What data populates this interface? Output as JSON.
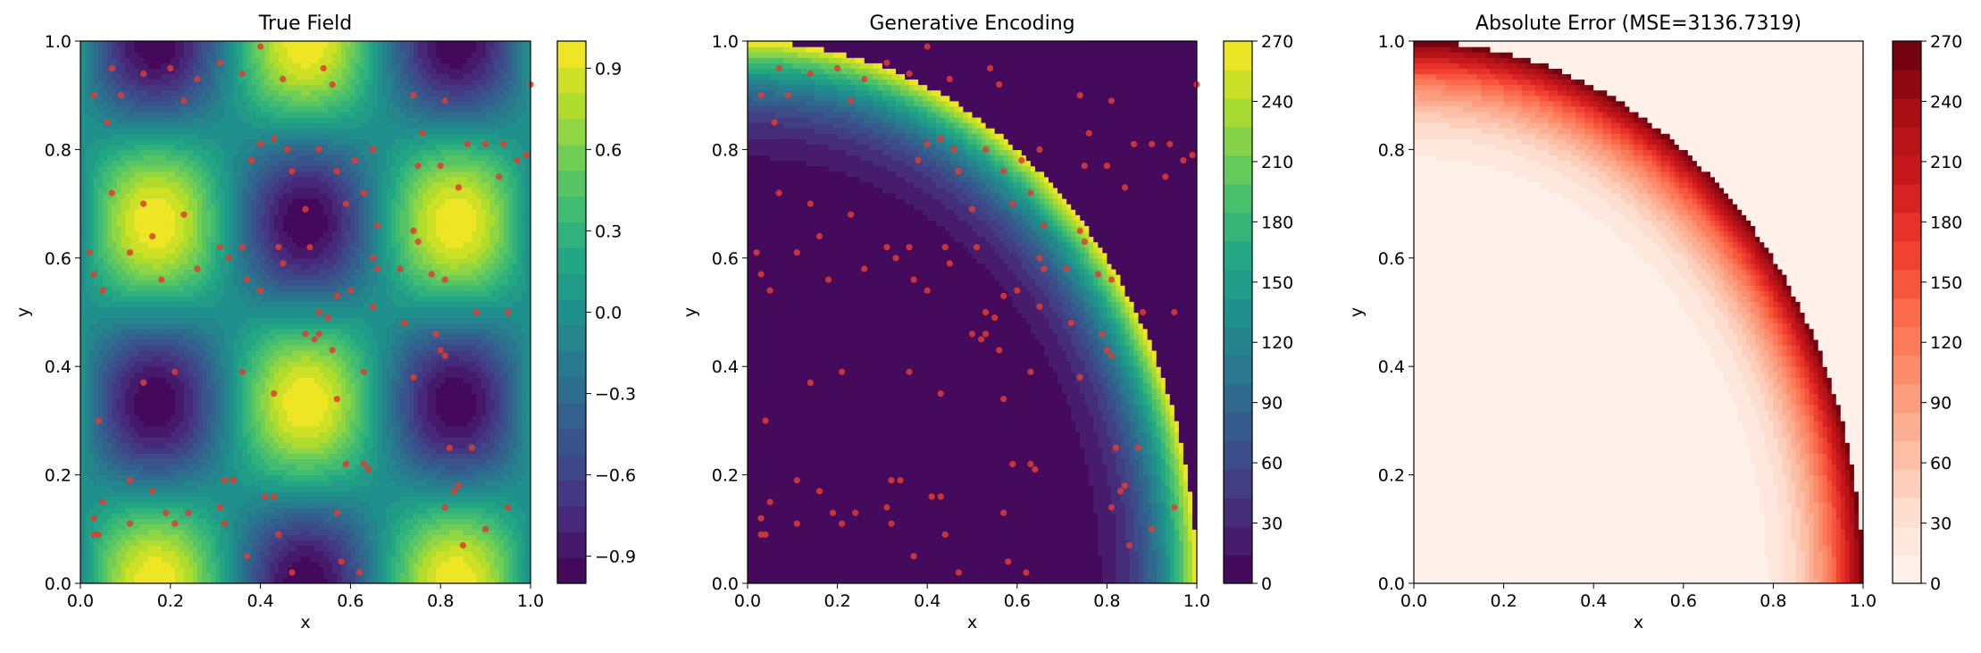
{
  "figure": {
    "panels": [
      {
        "id": "true-field",
        "title": "True Field",
        "xlabel": "x",
        "ylabel": "y"
      },
      {
        "id": "generative-encoding",
        "title": "Generative Encoding",
        "xlabel": "x",
        "ylabel": "y"
      },
      {
        "id": "absolute-error",
        "title": "Absolute Error (MSE=3136.7319)",
        "xlabel": "x",
        "ylabel": "y"
      }
    ]
  },
  "chart_data": [
    {
      "type": "heatmap",
      "title": "True Field",
      "xlabel": "x",
      "ylabel": "y",
      "xlim": [
        0,
        1
      ],
      "ylim": [
        0,
        1
      ],
      "xticks": [
        "0.0",
        "0.2",
        "0.4",
        "0.6",
        "0.8",
        "1.0"
      ],
      "yticks": [
        "0.0",
        "0.2",
        "0.4",
        "0.6",
        "0.8",
        "1.0"
      ],
      "colormap": "viridis",
      "levels": 21,
      "field": "sin(3*pi*x)*cos(3*pi*y)",
      "colorbar": {
        "min": -1,
        "max": 1,
        "ticks": [
          -0.9,
          -0.6,
          -0.3,
          0.0,
          0.3,
          0.6,
          0.9
        ],
        "tick_labels": [
          "−0.9",
          "−0.6",
          "−0.3",
          "0.0",
          "0.3",
          "0.6",
          "0.9"
        ]
      },
      "scatter_color": "#e03c2f"
    },
    {
      "type": "heatmap",
      "title": "Generative Encoding",
      "xlabel": "x",
      "ylabel": "y",
      "xlim": [
        0,
        1
      ],
      "ylim": [
        0,
        1
      ],
      "xticks": [
        "0.0",
        "0.2",
        "0.4",
        "0.6",
        "0.8",
        "1.0"
      ],
      "yticks": [
        "0.0",
        "0.2",
        "0.4",
        "0.6",
        "0.8",
        "1.0"
      ],
      "colormap": "viridis",
      "levels": 19,
      "field": "radial ring: ~0 inside r≈0.72, rising to ~270 at r≈1.0, 0 beyond",
      "colorbar": {
        "min": 0,
        "max": 270,
        "ticks": [
          0,
          30,
          60,
          90,
          120,
          150,
          180,
          210,
          240,
          270
        ],
        "tick_labels": [
          "0",
          "30",
          "60",
          "90",
          "120",
          "150",
          "180",
          "210",
          "240",
          "270"
        ]
      },
      "scatter_color": "#e03c2f"
    },
    {
      "type": "heatmap",
      "title": "Absolute Error (MSE=3136.7319)",
      "xlabel": "x",
      "ylabel": "y",
      "xlim": [
        0,
        1
      ],
      "ylim": [
        0,
        1
      ],
      "xticks": [
        "0.0",
        "0.2",
        "0.4",
        "0.6",
        "0.8",
        "1.0"
      ],
      "yticks": [
        "0.0",
        "0.2",
        "0.4",
        "0.6",
        "0.8",
        "1.0"
      ],
      "colormap": "reds",
      "levels": 19,
      "mse": 3136.7319,
      "colorbar": {
        "min": 0,
        "max": 270,
        "ticks": [
          0,
          30,
          60,
          90,
          120,
          150,
          180,
          210,
          240,
          270
        ],
        "tick_labels": [
          "0",
          "30",
          "60",
          "90",
          "120",
          "150",
          "180",
          "210",
          "240",
          "270"
        ]
      }
    }
  ],
  "sample_points": [
    [
      0.03,
      0.9
    ],
    [
      0.07,
      0.95
    ],
    [
      0.09,
      0.9
    ],
    [
      0.06,
      0.85
    ],
    [
      0.14,
      0.94
    ],
    [
      0.2,
      0.95
    ],
    [
      0.23,
      0.89
    ],
    [
      0.26,
      0.93
    ],
    [
      0.31,
      0.96
    ],
    [
      0.36,
      0.94
    ],
    [
      0.4,
      0.99
    ],
    [
      0.45,
      0.93
    ],
    [
      0.54,
      0.95
    ],
    [
      0.56,
      0.92
    ],
    [
      0.74,
      0.9
    ],
    [
      0.76,
      0.83
    ],
    [
      0.81,
      0.89
    ],
    [
      0.86,
      0.81
    ],
    [
      0.9,
      0.81
    ],
    [
      0.94,
      0.81
    ],
    [
      0.97,
      0.78
    ],
    [
      1.0,
      0.92
    ],
    [
      0.4,
      0.81
    ],
    [
      0.43,
      0.82
    ],
    [
      0.38,
      0.78
    ],
    [
      0.46,
      0.8
    ],
    [
      0.47,
      0.76
    ],
    [
      0.53,
      0.8
    ],
    [
      0.57,
      0.76
    ],
    [
      0.61,
      0.78
    ],
    [
      0.65,
      0.8
    ],
    [
      0.75,
      0.77
    ],
    [
      0.8,
      0.77
    ],
    [
      0.84,
      0.73
    ],
    [
      0.93,
      0.75
    ],
    [
      0.99,
      0.79
    ],
    [
      0.63,
      0.72
    ],
    [
      0.07,
      0.72
    ],
    [
      0.14,
      0.7
    ],
    [
      0.16,
      0.64
    ],
    [
      0.23,
      0.68
    ],
    [
      0.31,
      0.62
    ],
    [
      0.36,
      0.62
    ],
    [
      0.44,
      0.62
    ],
    [
      0.5,
      0.69
    ],
    [
      0.51,
      0.62
    ],
    [
      0.59,
      0.7
    ],
    [
      0.66,
      0.66
    ],
    [
      0.74,
      0.65
    ],
    [
      0.75,
      0.63
    ],
    [
      0.78,
      0.57
    ],
    [
      0.81,
      0.56
    ],
    [
      0.71,
      0.58
    ],
    [
      0.65,
      0.6
    ],
    [
      0.02,
      0.61
    ],
    [
      0.03,
      0.57
    ],
    [
      0.05,
      0.54
    ],
    [
      0.11,
      0.61
    ],
    [
      0.18,
      0.56
    ],
    [
      0.26,
      0.58
    ],
    [
      0.33,
      0.6
    ],
    [
      0.37,
      0.56
    ],
    [
      0.4,
      0.54
    ],
    [
      0.45,
      0.59
    ],
    [
      0.53,
      0.5
    ],
    [
      0.55,
      0.49
    ],
    [
      0.57,
      0.53
    ],
    [
      0.6,
      0.54
    ],
    [
      0.65,
      0.51
    ],
    [
      0.66,
      0.58
    ],
    [
      0.53,
      0.46
    ],
    [
      0.5,
      0.46
    ],
    [
      0.52,
      0.45
    ],
    [
      0.56,
      0.43
    ],
    [
      0.63,
      0.39
    ],
    [
      0.72,
      0.48
    ],
    [
      0.74,
      0.38
    ],
    [
      0.79,
      0.46
    ],
    [
      0.8,
      0.43
    ],
    [
      0.81,
      0.42
    ],
    [
      0.88,
      0.5
    ],
    [
      0.95,
      0.5
    ],
    [
      0.04,
      0.3
    ],
    [
      0.14,
      0.37
    ],
    [
      0.21,
      0.39
    ],
    [
      0.36,
      0.39
    ],
    [
      0.43,
      0.35
    ],
    [
      0.57,
      0.34
    ],
    [
      0.82,
      0.25
    ],
    [
      0.87,
      0.25
    ],
    [
      0.11,
      0.19
    ],
    [
      0.16,
      0.17
    ],
    [
      0.32,
      0.19
    ],
    [
      0.34,
      0.19
    ],
    [
      0.43,
      0.16
    ],
    [
      0.59,
      0.22
    ],
    [
      0.63,
      0.22
    ],
    [
      0.64,
      0.21
    ],
    [
      0.84,
      0.18
    ],
    [
      0.83,
      0.17
    ],
    [
      0.03,
      0.12
    ],
    [
      0.05,
      0.15
    ],
    [
      0.04,
      0.09
    ],
    [
      0.03,
      0.09
    ],
    [
      0.11,
      0.11
    ],
    [
      0.19,
      0.13
    ],
    [
      0.21,
      0.11
    ],
    [
      0.24,
      0.13
    ],
    [
      0.31,
      0.14
    ],
    [
      0.32,
      0.11
    ],
    [
      0.37,
      0.05
    ],
    [
      0.41,
      0.16
    ],
    [
      0.44,
      0.09
    ],
    [
      0.47,
      0.02
    ],
    [
      0.57,
      0.13
    ],
    [
      0.58,
      0.04
    ],
    [
      0.62,
      0.02
    ],
    [
      0.81,
      0.14
    ],
    [
      0.85,
      0.07
    ],
    [
      0.9,
      0.1
    ],
    [
      0.95,
      0.14
    ]
  ]
}
